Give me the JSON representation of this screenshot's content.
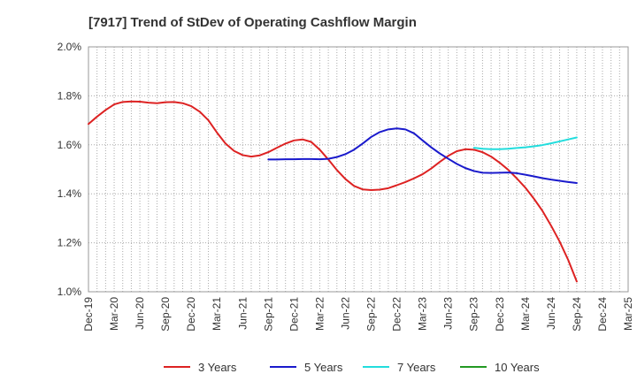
{
  "chart_data": {
    "type": "line",
    "title": "[7917]  Trend of StDev of Operating Cashflow Margin",
    "xlabel": "",
    "ylabel": "",
    "x_tick_labels": [
      "Dec-19",
      "Mar-20",
      "Jun-20",
      "Sep-20",
      "Dec-20",
      "Mar-21",
      "Jun-21",
      "Sep-21",
      "Dec-21",
      "Mar-22",
      "Jun-22",
      "Sep-22",
      "Dec-22",
      "Mar-23",
      "Jun-23",
      "Sep-23",
      "Dec-23",
      "Mar-24",
      "Jun-24",
      "Sep-24",
      "Dec-24",
      "Mar-25"
    ],
    "y_tick_labels": [
      "1.0%",
      "1.2%",
      "1.4%",
      "1.6%",
      "1.8%",
      "2.0%"
    ],
    "y_ticks": [
      1.0,
      1.2,
      1.4,
      1.6,
      1.8,
      2.0
    ],
    "ylim": [
      1.0,
      2.0
    ],
    "grid": true,
    "legend_position": "bottom",
    "series": [
      {
        "name": "3 Years",
        "color": "#dd2222",
        "x": [
          "Dec-19",
          "Jan-20",
          "Feb-20",
          "Mar-20",
          "Apr-20",
          "May-20",
          "Jun-20",
          "Jul-20",
          "Aug-20",
          "Sep-20",
          "Oct-20",
          "Nov-20",
          "Dec-20",
          "Jan-21",
          "Feb-21",
          "Mar-21",
          "Apr-21",
          "May-21",
          "Jun-21",
          "Jul-21",
          "Aug-21",
          "Sep-21",
          "Oct-21",
          "Nov-21",
          "Dec-21",
          "Jan-22",
          "Feb-22",
          "Mar-22",
          "Apr-22",
          "May-22",
          "Jun-22",
          "Jul-22",
          "Aug-22",
          "Sep-22",
          "Oct-22",
          "Nov-22",
          "Dec-22",
          "Jan-23",
          "Feb-23",
          "Mar-23",
          "Apr-23",
          "May-23",
          "Jun-23",
          "Jul-23",
          "Aug-23",
          "Sep-23",
          "Oct-23",
          "Nov-23",
          "Dec-23",
          "Jan-24",
          "Feb-24",
          "Mar-24",
          "Apr-24",
          "May-24",
          "Jun-24",
          "Jul-24",
          "Aug-24",
          "Sep-24"
        ],
        "values": [
          1.685,
          1.715,
          1.742,
          1.765,
          1.775,
          1.777,
          1.776,
          1.772,
          1.77,
          1.774,
          1.775,
          1.77,
          1.758,
          1.735,
          1.7,
          1.65,
          1.605,
          1.575,
          1.558,
          1.552,
          1.557,
          1.57,
          1.588,
          1.605,
          1.618,
          1.622,
          1.612,
          1.58,
          1.54,
          1.497,
          1.46,
          1.432,
          1.418,
          1.415,
          1.417,
          1.423,
          1.435,
          1.448,
          1.463,
          1.48,
          1.503,
          1.53,
          1.555,
          1.574,
          1.582,
          1.58,
          1.57,
          1.552,
          1.527,
          1.498,
          1.463,
          1.425,
          1.38,
          1.33,
          1.27,
          1.205,
          1.13,
          1.042
        ]
      },
      {
        "name": "5 Years",
        "color": "#1a1acc",
        "x": [
          "Sep-21",
          "Oct-21",
          "Nov-21",
          "Dec-21",
          "Jan-22",
          "Feb-22",
          "Mar-22",
          "Apr-22",
          "May-22",
          "Jun-22",
          "Jul-22",
          "Aug-22",
          "Sep-22",
          "Oct-22",
          "Nov-22",
          "Dec-22",
          "Jan-23",
          "Feb-23",
          "Mar-23",
          "Apr-23",
          "May-23",
          "Jun-23",
          "Jul-23",
          "Aug-23",
          "Sep-23",
          "Oct-23",
          "Nov-23",
          "Dec-23",
          "Jan-24",
          "Feb-24",
          "Mar-24",
          "Apr-24",
          "May-24",
          "Jun-24",
          "Jul-24",
          "Aug-24",
          "Sep-24"
        ],
        "values": [
          1.54,
          1.54,
          1.541,
          1.541,
          1.542,
          1.542,
          1.541,
          1.543,
          1.55,
          1.562,
          1.58,
          1.605,
          1.632,
          1.652,
          1.663,
          1.667,
          1.663,
          1.647,
          1.618,
          1.59,
          1.565,
          1.543,
          1.522,
          1.505,
          1.493,
          1.486,
          1.485,
          1.486,
          1.487,
          1.484,
          1.478,
          1.471,
          1.464,
          1.458,
          1.453,
          1.448,
          1.444
        ]
      },
      {
        "name": "7 Years",
        "color": "#22dddd",
        "x": [
          "Sep-23",
          "Oct-23",
          "Nov-23",
          "Dec-23",
          "Jan-24",
          "Feb-24",
          "Mar-24",
          "Apr-24",
          "May-24",
          "Jun-24",
          "Jul-24",
          "Aug-24",
          "Sep-24"
        ],
        "values": [
          1.588,
          1.584,
          1.582,
          1.582,
          1.584,
          1.587,
          1.59,
          1.594,
          1.599,
          1.606,
          1.614,
          1.622,
          1.63
        ]
      },
      {
        "name": "10 Years",
        "color": "#229922",
        "x": [],
        "values": []
      }
    ]
  }
}
